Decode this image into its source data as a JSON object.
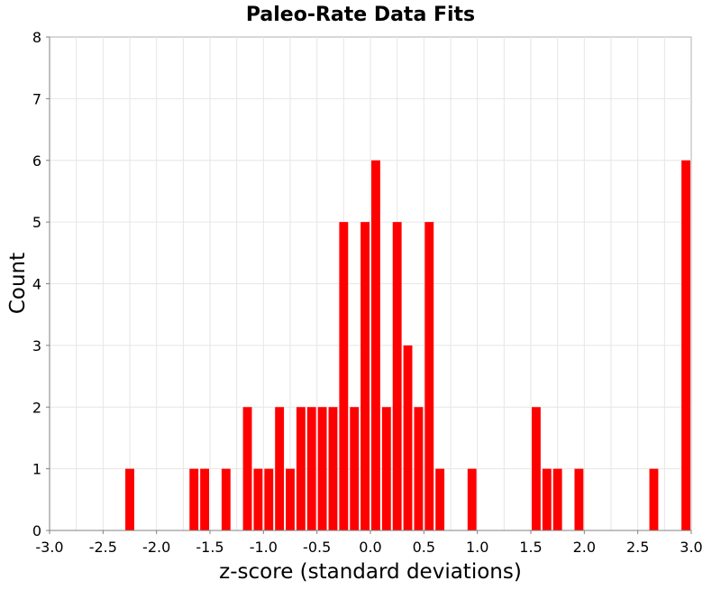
{
  "chart_data": {
    "type": "bar",
    "title": "Paleo-Rate Data Fits",
    "xlabel": "z-score (standard deviations)",
    "ylabel": "Count",
    "xlim": [
      -3.0,
      3.0
    ],
    "ylim": [
      0,
      8
    ],
    "bin_width": 0.1,
    "x_ticks": [
      "-3.0",
      "-2.5",
      "-2.0",
      "-1.5",
      "-1.0",
      "-0.5",
      "0.0",
      "0.5",
      "1.0",
      "1.5",
      "2.0",
      "2.5",
      "3.0"
    ],
    "y_ticks": [
      "0",
      "1",
      "2",
      "3",
      "4",
      "5",
      "6",
      "7",
      "8"
    ],
    "grid": true,
    "bar_color": "#ff0000",
    "bins": [
      {
        "x": -2.25,
        "count": 1
      },
      {
        "x": -1.65,
        "count": 1
      },
      {
        "x": -1.55,
        "count": 1
      },
      {
        "x": -1.35,
        "count": 1
      },
      {
        "x": -1.15,
        "count": 2
      },
      {
        "x": -1.05,
        "count": 1
      },
      {
        "x": -0.95,
        "count": 1
      },
      {
        "x": -0.85,
        "count": 2
      },
      {
        "x": -0.75,
        "count": 1
      },
      {
        "x": -0.65,
        "count": 2
      },
      {
        "x": -0.55,
        "count": 2
      },
      {
        "x": -0.45,
        "count": 2
      },
      {
        "x": -0.35,
        "count": 2
      },
      {
        "x": -0.25,
        "count": 5
      },
      {
        "x": -0.15,
        "count": 2
      },
      {
        "x": -0.05,
        "count": 5
      },
      {
        "x": 0.05,
        "count": 6
      },
      {
        "x": 0.15,
        "count": 2
      },
      {
        "x": 0.25,
        "count": 5
      },
      {
        "x": 0.35,
        "count": 3
      },
      {
        "x": 0.45,
        "count": 2
      },
      {
        "x": 0.55,
        "count": 5
      },
      {
        "x": 0.65,
        "count": 1
      },
      {
        "x": 0.95,
        "count": 1
      },
      {
        "x": 1.55,
        "count": 2
      },
      {
        "x": 1.65,
        "count": 1
      },
      {
        "x": 1.75,
        "count": 1
      },
      {
        "x": 1.95,
        "count": 1
      },
      {
        "x": 2.65,
        "count": 1
      },
      {
        "x": 2.95,
        "count": 6
      }
    ]
  }
}
